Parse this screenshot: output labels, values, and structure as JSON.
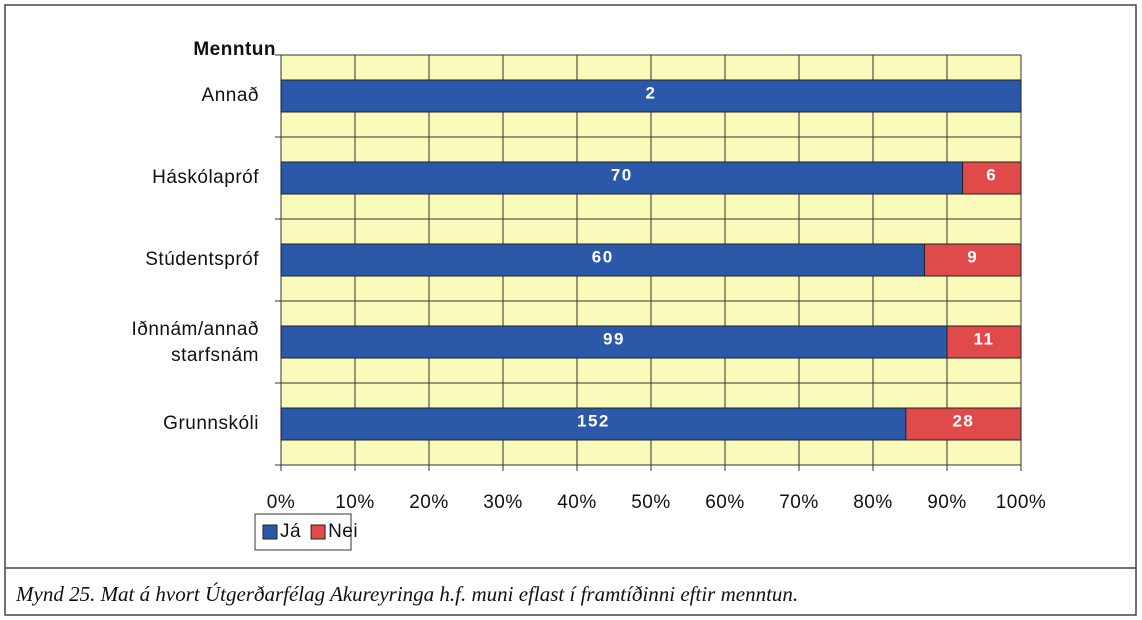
{
  "chart_data": {
    "type": "bar",
    "orientation": "horizontal",
    "stacking": "percent",
    "y_axis_title": "Menntun",
    "categories": [
      "Annað",
      "Háskólapróf",
      "Stúdentspróf",
      "Iðnnám/annað starfsnám",
      "Grunnskóli"
    ],
    "series": [
      {
        "name": "Já",
        "color": "#2b58a8",
        "values": [
          2,
          70,
          60,
          99,
          152
        ]
      },
      {
        "name": "Nei",
        "color": "#e04a4a",
        "values": [
          0,
          6,
          9,
          11,
          28
        ]
      }
    ],
    "xlim": [
      0,
      100
    ],
    "xticks": [
      {
        "value": 0,
        "label": "0%"
      },
      {
        "value": 10,
        "label": "10%"
      },
      {
        "value": 20,
        "label": "20%"
      },
      {
        "value": 30,
        "label": "30%"
      },
      {
        "value": 40,
        "label": "40%"
      },
      {
        "value": 50,
        "label": "50%"
      },
      {
        "value": 60,
        "label": "60%"
      },
      {
        "value": 70,
        "label": "70%"
      },
      {
        "value": 80,
        "label": "80%"
      },
      {
        "value": 90,
        "label": "90%"
      },
      {
        "value": 100,
        "label": "100%"
      }
    ],
    "grid": true,
    "legend": "bottom-left",
    "caption": "Mynd 25.  Mat á hvort Útgerðarfélag Akureyringa h.f. muni eflast í framtíðinni eftir menntun."
  }
}
